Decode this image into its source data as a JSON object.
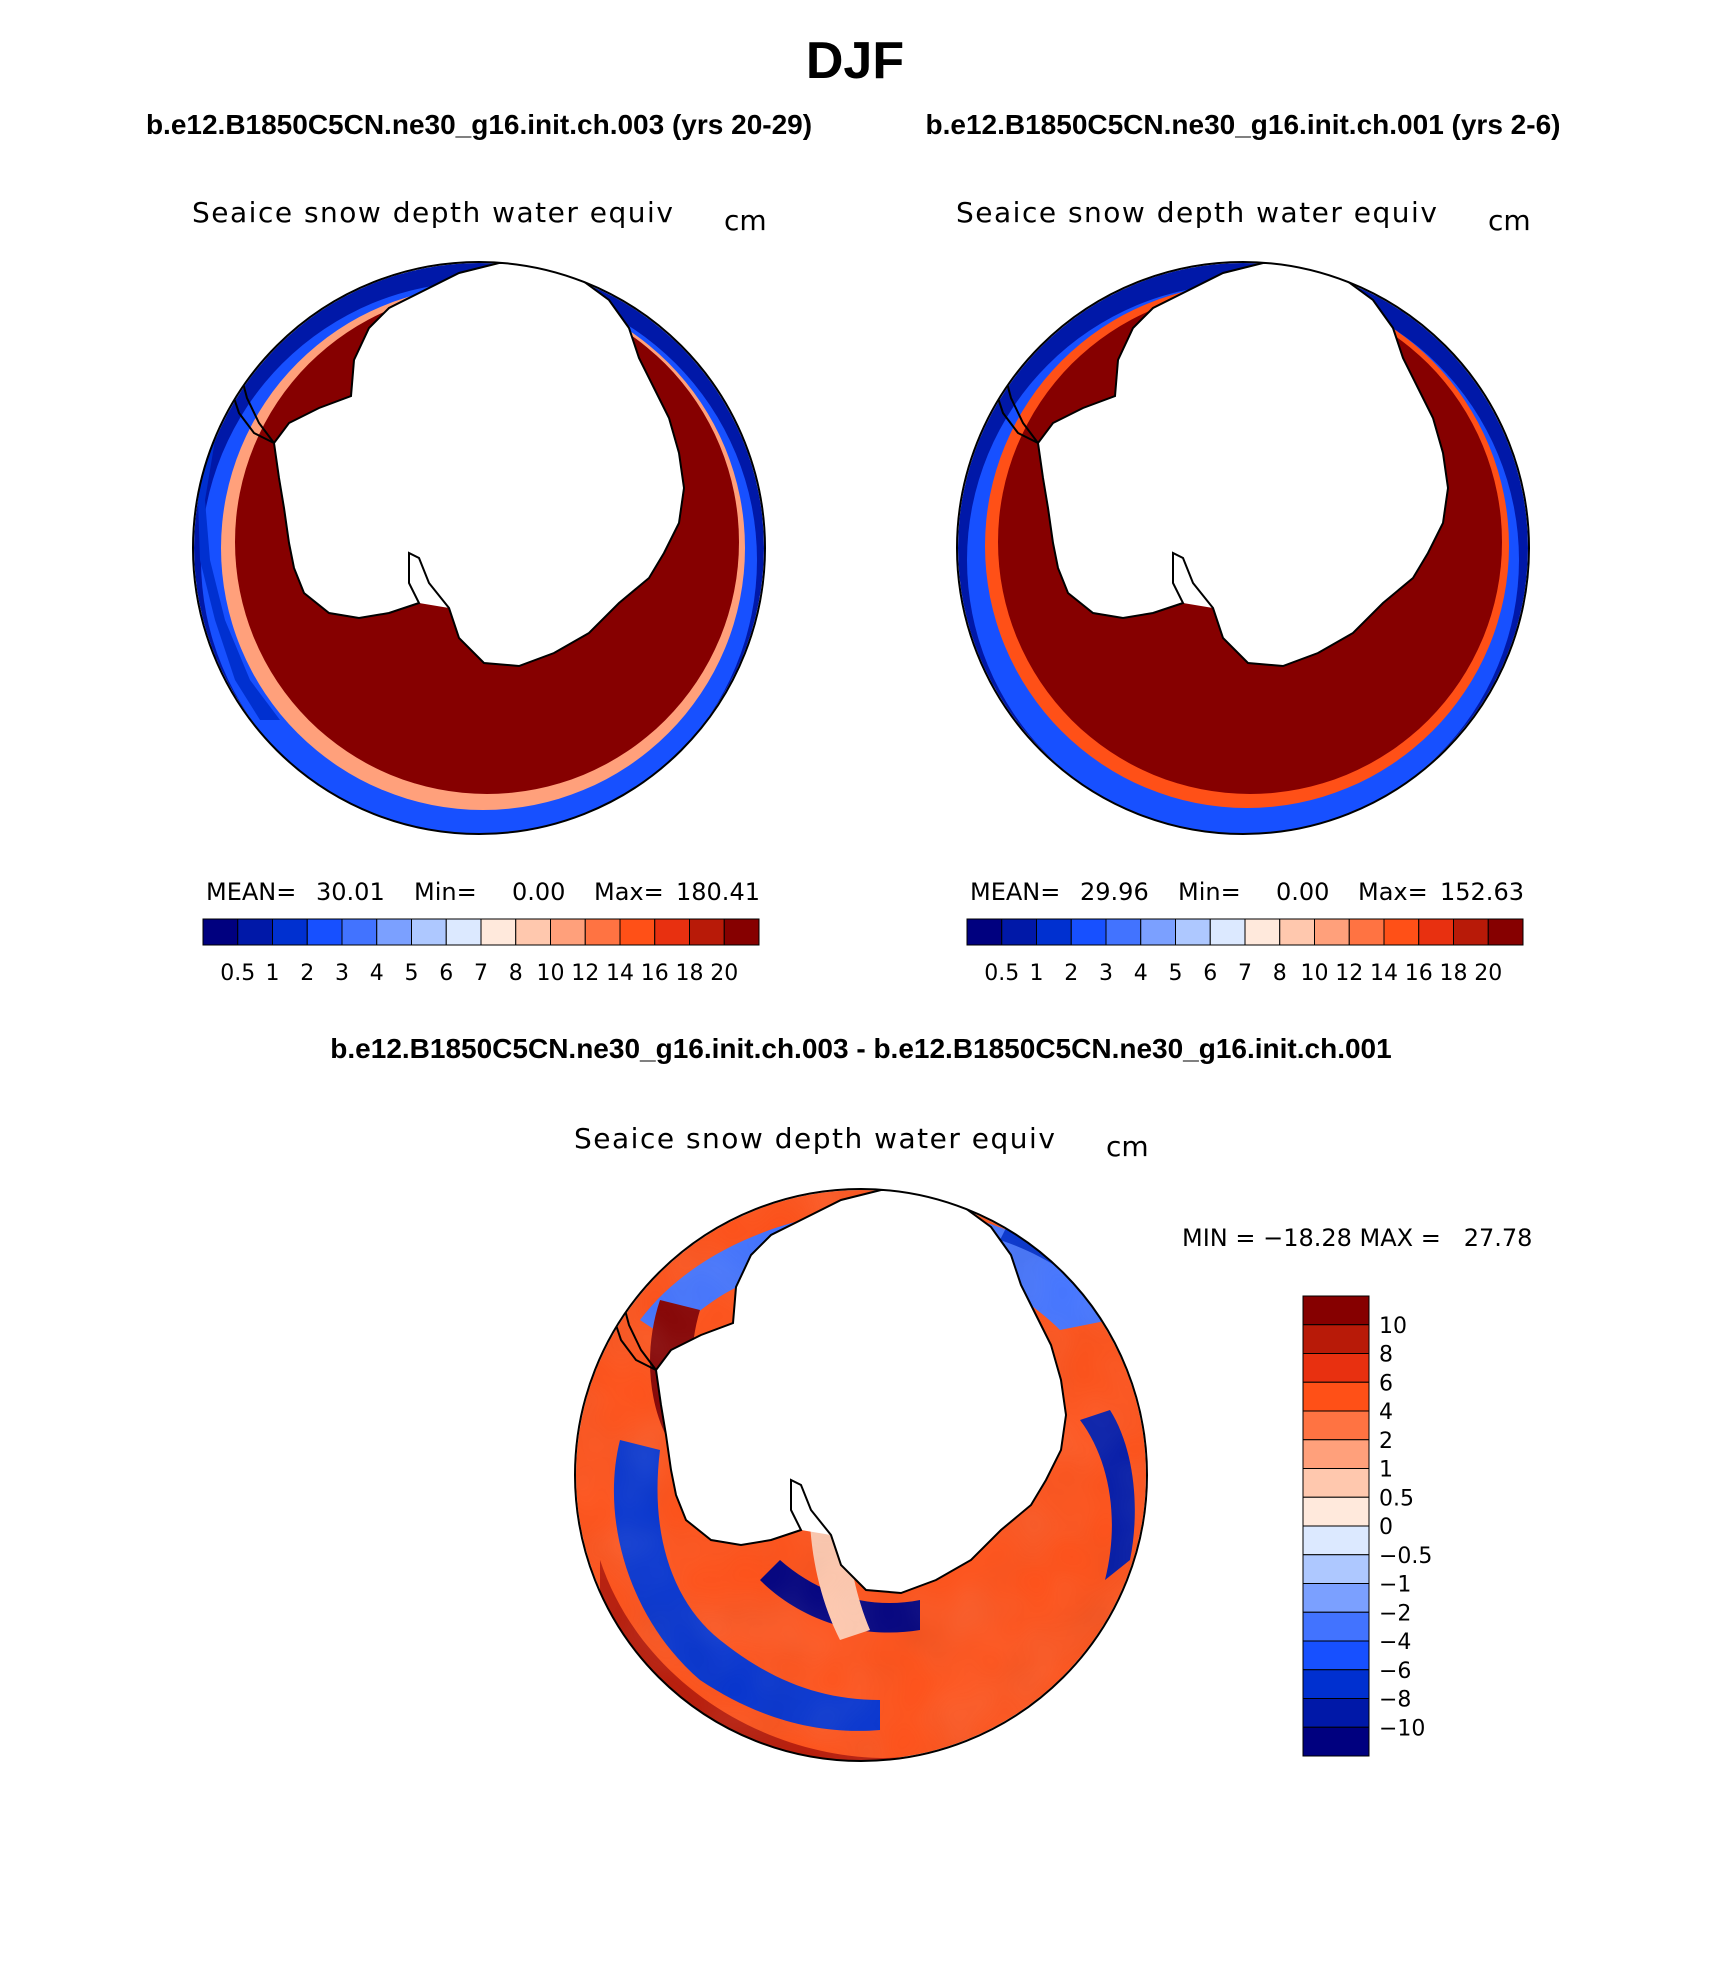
{
  "figure": {
    "title": "DJF",
    "left_case": "b.e12.B1850C5CN.ne30_g16.init.ch.003 (yrs 20-29)",
    "right_case": "b.e12.B1850C5CN.ne30_g16.init.ch.001 (yrs 2-6)",
    "diff_title": "b.e12.B1850C5CN.ne30_g16.init.ch.003 - b.e12.B1850C5CN.ne30_g16.init.ch.001"
  },
  "panels": [
    {
      "variable": "Seaice snow depth water equiv",
      "units": "cm",
      "stats": {
        "mean_label": "MEAN=",
        "mean": "30.01",
        "min_label": "Min=",
        "min": "0.00",
        "max_label": "Max=",
        "max": "180.41"
      }
    },
    {
      "variable": "Seaice snow depth water equiv",
      "units": "cm",
      "stats": {
        "mean_label": "MEAN=",
        "mean": "29.96",
        "min_label": "Min=",
        "min": "0.00",
        "max_label": "Max=",
        "max": "152.63"
      }
    }
  ],
  "diff_panel": {
    "variable": "Seaice snow depth water equiv",
    "units": "cm",
    "minmax": "MIN = −18.28 MAX =   27.78"
  },
  "colorbar_abs": {
    "colors": [
      "#00007f",
      "#0018a8",
      "#0030d0",
      "#1750ff",
      "#4273ff",
      "#7ba0ff",
      "#aec8ff",
      "#dce9ff",
      "#ffe9dc",
      "#ffc8ae",
      "#ffa07b",
      "#ff7342",
      "#ff5017",
      "#e83010",
      "#b81a08",
      "#860000"
    ],
    "labels": [
      "0.5",
      "1",
      "2",
      "3",
      "4",
      "5",
      "6",
      "7",
      "8",
      "10",
      "12",
      "14",
      "16",
      "18",
      "20"
    ]
  },
  "colorbar_diff": {
    "colors_top_to_bottom": [
      "#860000",
      "#b81a08",
      "#e83010",
      "#ff5017",
      "#ff7342",
      "#ffa07b",
      "#ffc8ae",
      "#ffe9dc",
      "#dce9ff",
      "#aec8ff",
      "#7ba0ff",
      "#4273ff",
      "#1750ff",
      "#0030d0",
      "#0018a8",
      "#00007f"
    ],
    "labels_top_to_bottom": [
      "10",
      "8",
      "6",
      "4",
      "2",
      "1",
      "0.5",
      "0",
      "−0.5",
      "−1",
      "−2",
      "−4",
      "−6",
      "−8",
      "−10"
    ]
  },
  "legend": {
    "colors": {
      "ice_high": "#860000",
      "ice_orange": "#ff5017",
      "ice_blue": "#0030d0",
      "ice_navy": "#0018a8",
      "land": "#ffffff",
      "coast": "#000000"
    }
  }
}
